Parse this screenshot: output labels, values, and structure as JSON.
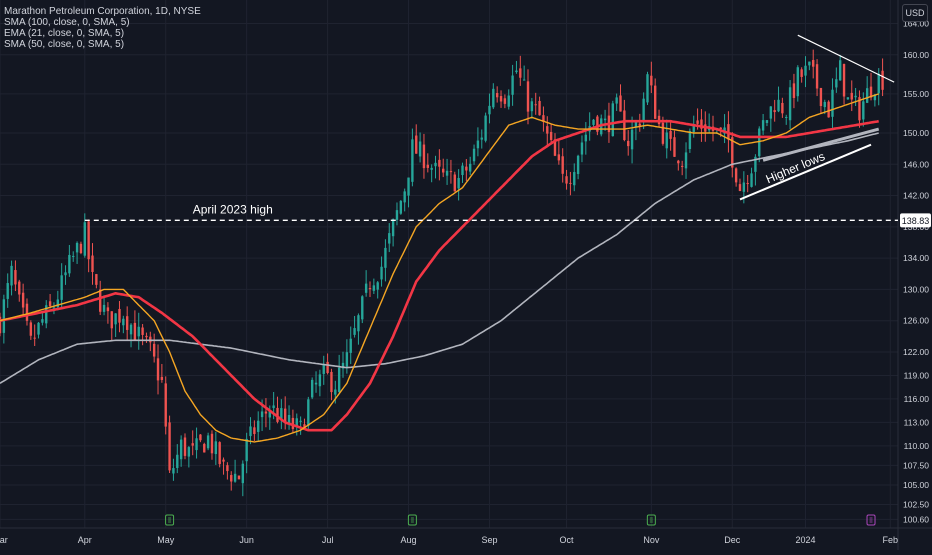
{
  "header": {
    "symbol_line": "Marathon Petroleum Corporation, 1D, NYSE",
    "indicators": [
      "SMA (100, close, 0, SMA, 5)",
      "EMA (21, close, 0, SMA, 5)",
      "SMA (50, close, 0, SMA, 5)"
    ],
    "currency": "USD"
  },
  "colors": {
    "background": "#131722",
    "grid": "#1f2330",
    "up": "#26a69a",
    "down": "#ef5350",
    "sma100": "#b2b5be",
    "ema21": "#f5a623",
    "sma50": "#f23645",
    "text": "#d1d4dc",
    "earnings": "#4caf50",
    "earnings_upcoming": "#ab47bc"
  },
  "chart_data": {
    "type": "candlestick",
    "ylim": [
      99.5,
      167
    ],
    "y_ticks": [
      164.0,
      160.0,
      155.0,
      150.0,
      146.0,
      142.0,
      138.0,
      134.0,
      130.0,
      126.0,
      122.0,
      119.0,
      116.0,
      113.0,
      110.0,
      107.5,
      105.0,
      102.5,
      100.6
    ],
    "x_labels": [
      "Mar",
      "Apr",
      "May",
      "Jun",
      "Jul",
      "Aug",
      "Sep",
      "Oct",
      "Nov",
      "Dec",
      "2024",
      "Feb"
    ],
    "x_label_days": [
      0,
      22,
      43,
      64,
      85,
      106,
      127,
      147,
      169,
      190,
      209,
      231
    ],
    "day_range": [
      0,
      233
    ],
    "price_anchors": [
      [
        0,
        126
      ],
      [
        3,
        132
      ],
      [
        5,
        128
      ],
      [
        8,
        123
      ],
      [
        11,
        126
      ],
      [
        14,
        128
      ],
      [
        18,
        133
      ],
      [
        22,
        137
      ],
      [
        24,
        131
      ],
      [
        28,
        126
      ],
      [
        32,
        127
      ],
      [
        36,
        124
      ],
      [
        39,
        122
      ],
      [
        42,
        118
      ],
      [
        44,
        106
      ],
      [
        47,
        110
      ],
      [
        50,
        109
      ],
      [
        54,
        111
      ],
      [
        58,
        107
      ],
      [
        62,
        106
      ],
      [
        64,
        110
      ],
      [
        67,
        113
      ],
      [
        70,
        115
      ],
      [
        74,
        113
      ],
      [
        78,
        112
      ],
      [
        81,
        117
      ],
      [
        84,
        119
      ],
      [
        87,
        118
      ],
      [
        90,
        121
      ],
      [
        93,
        126
      ],
      [
        96,
        131
      ],
      [
        99,
        133
      ],
      [
        102,
        138
      ],
      [
        105,
        143
      ],
      [
        107,
        148
      ],
      [
        110,
        147
      ],
      [
        113,
        145
      ],
      [
        116,
        144
      ],
      [
        119,
        144
      ],
      [
        122,
        146
      ],
      [
        125,
        150
      ],
      [
        128,
        156
      ],
      [
        131,
        155
      ],
      [
        134,
        158
      ],
      [
        137,
        154
      ],
      [
        140,
        152
      ],
      [
        143,
        148
      ],
      [
        146,
        144
      ],
      [
        148,
        145
      ],
      [
        151,
        149
      ],
      [
        154,
        152
      ],
      [
        157,
        151
      ],
      [
        160,
        153
      ],
      [
        163,
        149
      ],
      [
        166,
        152
      ],
      [
        168,
        157
      ],
      [
        171,
        151
      ],
      [
        174,
        148
      ],
      [
        177,
        147
      ],
      [
        180,
        151
      ],
      [
        183,
        151
      ],
      [
        186,
        150
      ],
      [
        189,
        149
      ],
      [
        192,
        143
      ],
      [
        195,
        146
      ],
      [
        198,
        151
      ],
      [
        201,
        154
      ],
      [
        204,
        153
      ],
      [
        207,
        157
      ],
      [
        210,
        158
      ],
      [
        212,
        156
      ],
      [
        215,
        153
      ],
      [
        218,
        158
      ],
      [
        220,
        154
      ],
      [
        223,
        153
      ],
      [
        226,
        156
      ],
      [
        228,
        157
      ]
    ],
    "sma100_anchors": [
      [
        0,
        118
      ],
      [
        10,
        121
      ],
      [
        20,
        123
      ],
      [
        30,
        123.5
      ],
      [
        44,
        123.5
      ],
      [
        60,
        122.5
      ],
      [
        75,
        121
      ],
      [
        90,
        120
      ],
      [
        100,
        120.5
      ],
      [
        110,
        121.5
      ],
      [
        120,
        123
      ],
      [
        130,
        126
      ],
      [
        140,
        130
      ],
      [
        150,
        134
      ],
      [
        160,
        137
      ],
      [
        170,
        141
      ],
      [
        180,
        144
      ],
      [
        190,
        146
      ],
      [
        200,
        147
      ],
      [
        210,
        148
      ],
      [
        220,
        149
      ],
      [
        228,
        150
      ]
    ],
    "ema21_anchors": [
      [
        0,
        126
      ],
      [
        8,
        127
      ],
      [
        15,
        128
      ],
      [
        22,
        129
      ],
      [
        27,
        130
      ],
      [
        32,
        130
      ],
      [
        36,
        128
      ],
      [
        40,
        126
      ],
      [
        44,
        122
      ],
      [
        48,
        117
      ],
      [
        52,
        114
      ],
      [
        56,
        112
      ],
      [
        60,
        111
      ],
      [
        66,
        110.5
      ],
      [
        72,
        111
      ],
      [
        78,
        112
      ],
      [
        84,
        114
      ],
      [
        90,
        118
      ],
      [
        96,
        125
      ],
      [
        102,
        132
      ],
      [
        108,
        138
      ],
      [
        114,
        141
      ],
      [
        120,
        143
      ],
      [
        126,
        147
      ],
      [
        132,
        151
      ],
      [
        138,
        152
      ],
      [
        144,
        151
      ],
      [
        150,
        150.5
      ],
      [
        156,
        150.5
      ],
      [
        162,
        150.5
      ],
      [
        168,
        151
      ],
      [
        174,
        150.5
      ],
      [
        180,
        150
      ],
      [
        186,
        150
      ],
      [
        192,
        148.5
      ],
      [
        198,
        149
      ],
      [
        204,
        150
      ],
      [
        210,
        152
      ],
      [
        216,
        153
      ],
      [
        222,
        154
      ],
      [
        228,
        155
      ]
    ],
    "sma50_anchors": [
      [
        0,
        126
      ],
      [
        10,
        127
      ],
      [
        20,
        128
      ],
      [
        30,
        129.5
      ],
      [
        36,
        129
      ],
      [
        42,
        127
      ],
      [
        50,
        124
      ],
      [
        58,
        120
      ],
      [
        66,
        116
      ],
      [
        74,
        113
      ],
      [
        80,
        112
      ],
      [
        86,
        112
      ],
      [
        90,
        114
      ],
      [
        96,
        118
      ],
      [
        102,
        124
      ],
      [
        108,
        131
      ],
      [
        114,
        135
      ],
      [
        120,
        138
      ],
      [
        126,
        141
      ],
      [
        132,
        144
      ],
      [
        138,
        147
      ],
      [
        144,
        149
      ],
      [
        150,
        150
      ],
      [
        156,
        151
      ],
      [
        162,
        151.5
      ],
      [
        168,
        151.5
      ],
      [
        174,
        151.5
      ],
      [
        180,
        151
      ],
      [
        186,
        150.5
      ],
      [
        192,
        149.5
      ],
      [
        198,
        149.5
      ],
      [
        204,
        149.5
      ],
      [
        210,
        150
      ],
      [
        216,
        150.5
      ],
      [
        222,
        151
      ],
      [
        228,
        151.5
      ]
    ],
    "annotations": {
      "april_high_label": "April 2023 high",
      "april_high_value": 138.83,
      "price_badge": "138.83",
      "higher_lows_label": "Higher lows",
      "higher_lows_line": [
        [
          192,
          141.5
        ],
        [
          226,
          148.5
        ]
      ],
      "higher_lows_support": [
        [
          198,
          146.5
        ],
        [
          228,
          150.5
        ]
      ],
      "resistance_line": [
        [
          207,
          162.5
        ],
        [
          232,
          156.5
        ]
      ]
    },
    "earnings_days": [
      44,
      107,
      169
    ],
    "upcoming_earnings_day": [
      226
    ]
  }
}
